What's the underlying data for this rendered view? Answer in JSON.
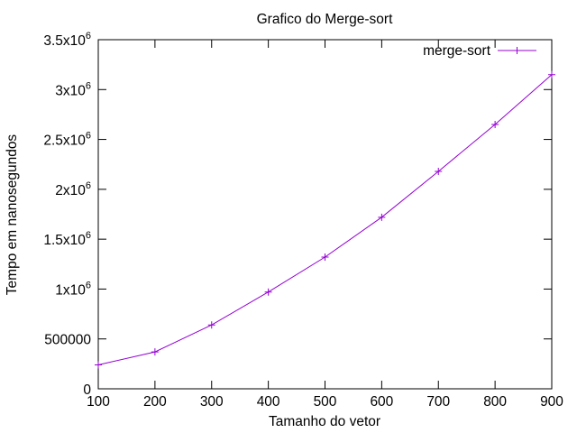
{
  "chart_data": {
    "type": "line",
    "title": "Grafico do Merge-sort",
    "xlabel": "Tamanho do vetor",
    "ylabel": "Tempo em nanosegundos",
    "xlim": [
      100,
      900
    ],
    "ylim": [
      0,
      3500000
    ],
    "x_ticks": [
      100,
      200,
      300,
      400,
      500,
      600,
      700,
      800,
      900
    ],
    "x_tick_labels": [
      "100",
      "200",
      "300",
      "400",
      "500",
      "600",
      "700",
      "800",
      "900"
    ],
    "y_ticks": [
      {
        "value": 0,
        "mantissa": "0",
        "exp": ""
      },
      {
        "value": 500000,
        "mantissa": "500000",
        "exp": ""
      },
      {
        "value": 1000000,
        "mantissa": "1x10",
        "exp": "6"
      },
      {
        "value": 1500000,
        "mantissa": "1.5x10",
        "exp": "6"
      },
      {
        "value": 2000000,
        "mantissa": "2x10",
        "exp": "6"
      },
      {
        "value": 2500000,
        "mantissa": "2.5x10",
        "exp": "6"
      },
      {
        "value": 3000000,
        "mantissa": "3x10",
        "exp": "6"
      },
      {
        "value": 3500000,
        "mantissa": "3.5x10",
        "exp": "6"
      }
    ],
    "grid": false,
    "legend_position": "top-right",
    "series": [
      {
        "name": "merge-sort",
        "color": "#9400d3",
        "marker": "plus",
        "x": [
          100,
          200,
          300,
          400,
          500,
          600,
          700,
          800,
          900
        ],
        "y": [
          240000,
          370000,
          640000,
          970000,
          1320000,
          1720000,
          2180000,
          2650000,
          3150000
        ]
      }
    ]
  }
}
